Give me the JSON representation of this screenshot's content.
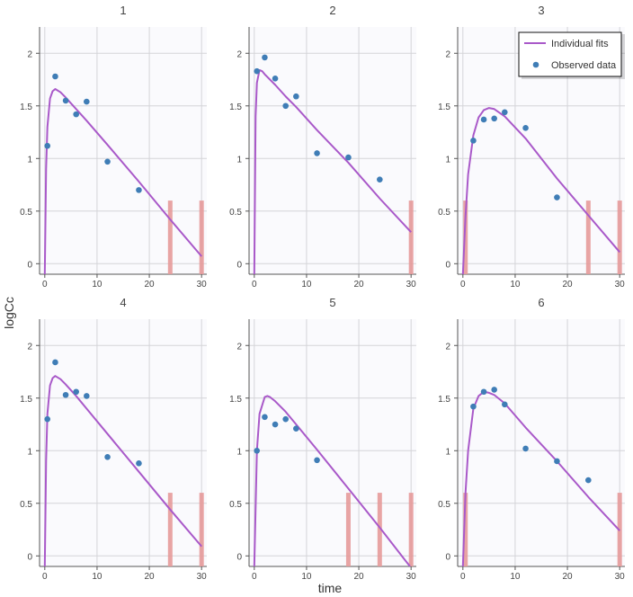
{
  "chart_data": {
    "type": "line",
    "xlabel": "time",
    "ylabel": "logCc",
    "xlim": [
      -1,
      31
    ],
    "ylim": [
      -0.1,
      2.25
    ],
    "xticks": [
      0,
      10,
      20,
      30
    ],
    "yticks": [
      0,
      0.5,
      1,
      1.5,
      2
    ],
    "grid": true,
    "legend": {
      "placement": "top-right",
      "entries": [
        "Individual fits",
        "Observed data"
      ]
    },
    "colors": {
      "fit": "#a959c9",
      "observed": "#3f7db6",
      "bar": "#e59a9a",
      "plot_bg": "#fafafd",
      "grid": "#d4d4d8"
    },
    "bar_height": 0.6,
    "panels": [
      {
        "title": "1",
        "observed": [
          [
            0.5,
            1.12
          ],
          [
            2,
            1.78
          ],
          [
            4,
            1.55
          ],
          [
            6,
            1.42
          ],
          [
            8,
            1.54
          ],
          [
            12,
            0.97
          ],
          [
            18,
            0.7
          ]
        ],
        "fit": [
          [
            0,
            -0.1
          ],
          [
            0.25,
            0.9
          ],
          [
            0.5,
            1.3
          ],
          [
            1,
            1.57
          ],
          [
            1.5,
            1.64
          ],
          [
            2,
            1.66
          ],
          [
            3,
            1.63
          ],
          [
            4,
            1.58
          ],
          [
            6,
            1.47
          ],
          [
            8,
            1.36
          ],
          [
            12,
            1.13
          ],
          [
            18,
            0.78
          ],
          [
            24,
            0.42
          ],
          [
            30,
            0.07
          ]
        ],
        "bars": [
          24,
          30
        ]
      },
      {
        "title": "2",
        "observed": [
          [
            0.5,
            1.83
          ],
          [
            2,
            1.96
          ],
          [
            4,
            1.76
          ],
          [
            6,
            1.5
          ],
          [
            8,
            1.59
          ],
          [
            12,
            1.05
          ],
          [
            18,
            1.01
          ],
          [
            24,
            0.8
          ]
        ],
        "fit": [
          [
            0,
            -0.1
          ],
          [
            0.25,
            1.4
          ],
          [
            0.5,
            1.72
          ],
          [
            1,
            1.84
          ],
          [
            1.5,
            1.83
          ],
          [
            2,
            1.8
          ],
          [
            4,
            1.7
          ],
          [
            6,
            1.59
          ],
          [
            8,
            1.49
          ],
          [
            12,
            1.27
          ],
          [
            18,
            0.96
          ],
          [
            24,
            0.62
          ],
          [
            30,
            0.3
          ]
        ],
        "bars": [
          30
        ]
      },
      {
        "title": "3",
        "observed": [
          [
            2,
            1.17
          ],
          [
            4,
            1.37
          ],
          [
            6,
            1.38
          ],
          [
            8,
            1.44
          ],
          [
            12,
            1.29
          ],
          [
            18,
            0.63
          ]
        ],
        "fit": [
          [
            0,
            -0.1
          ],
          [
            0.5,
            0.45
          ],
          [
            1,
            0.85
          ],
          [
            2,
            1.22
          ],
          [
            3,
            1.39
          ],
          [
            4,
            1.46
          ],
          [
            5,
            1.48
          ],
          [
            6,
            1.47
          ],
          [
            8,
            1.4
          ],
          [
            12,
            1.19
          ],
          [
            18,
            0.81
          ],
          [
            24,
            0.46
          ],
          [
            30,
            0.11
          ]
        ],
        "bars": [
          0.5,
          24,
          30
        ]
      },
      {
        "title": "4",
        "observed": [
          [
            0.5,
            1.3
          ],
          [
            2,
            1.84
          ],
          [
            4,
            1.53
          ],
          [
            6,
            1.56
          ],
          [
            8,
            1.52
          ],
          [
            12,
            0.94
          ],
          [
            18,
            0.88
          ]
        ],
        "fit": [
          [
            0,
            -0.1
          ],
          [
            0.25,
            0.9
          ],
          [
            0.5,
            1.35
          ],
          [
            1,
            1.62
          ],
          [
            1.5,
            1.69
          ],
          [
            2,
            1.71
          ],
          [
            3,
            1.68
          ],
          [
            4,
            1.63
          ],
          [
            6,
            1.52
          ],
          [
            8,
            1.4
          ],
          [
            12,
            1.16
          ],
          [
            18,
            0.8
          ],
          [
            24,
            0.44
          ],
          [
            30,
            0.09
          ]
        ],
        "bars": [
          24,
          30
        ]
      },
      {
        "title": "5",
        "observed": [
          [
            0.5,
            1.0
          ],
          [
            2,
            1.32
          ],
          [
            4,
            1.25
          ],
          [
            6,
            1.3
          ],
          [
            8,
            1.21
          ],
          [
            12,
            0.91
          ]
        ],
        "fit": [
          [
            0,
            -0.1
          ],
          [
            0.5,
            1.0
          ],
          [
            1,
            1.35
          ],
          [
            2,
            1.51
          ],
          [
            2.5,
            1.52
          ],
          [
            3,
            1.51
          ],
          [
            4,
            1.47
          ],
          [
            6,
            1.37
          ],
          [
            8,
            1.25
          ],
          [
            12,
            1.01
          ],
          [
            18,
            0.64
          ],
          [
            24,
            0.27
          ],
          [
            29,
            -0.05
          ],
          [
            29.8,
            -0.1
          ]
        ],
        "bars": [
          18,
          24,
          30
        ]
      },
      {
        "title": "6",
        "observed": [
          [
            2,
            1.42
          ],
          [
            4,
            1.56
          ],
          [
            6,
            1.58
          ],
          [
            8,
            1.44
          ],
          [
            12,
            1.02
          ],
          [
            18,
            0.9
          ],
          [
            24,
            0.72
          ]
        ],
        "fit": [
          [
            0,
            -0.1
          ],
          [
            0.5,
            0.6
          ],
          [
            1,
            1.0
          ],
          [
            2,
            1.4
          ],
          [
            3,
            1.52
          ],
          [
            4,
            1.56
          ],
          [
            5,
            1.55
          ],
          [
            6,
            1.53
          ],
          [
            8,
            1.45
          ],
          [
            12,
            1.22
          ],
          [
            18,
            0.9
          ],
          [
            24,
            0.56
          ],
          [
            30,
            0.24
          ]
        ],
        "bars": [
          0.5,
          30
        ]
      }
    ]
  }
}
